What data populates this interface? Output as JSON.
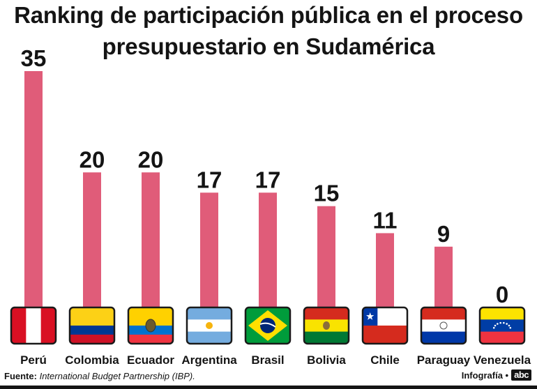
{
  "colors": {
    "bar": "#E05C79",
    "text": "#141414"
  },
  "chart_data": {
    "type": "bar",
    "title_line_1": "Ranking de participación pública en el proceso",
    "title_line_2": "presupuestario en Sudamérica",
    "categories": [
      "Perú",
      "Colombia",
      "Ecuador",
      "Argentina",
      "Brasil",
      "Bolivia",
      "Chile",
      "Paraguay",
      "Venezuela"
    ],
    "values": [
      35,
      20,
      20,
      17,
      17,
      15,
      11,
      9,
      0
    ],
    "flags": [
      "peru-flag-icon",
      "colombia-flag-icon",
      "ecuador-flag-icon",
      "argentina-flag-icon",
      "brazil-flag-icon",
      "bolivia-flag-icon",
      "chile-flag-icon",
      "paraguay-flag-icon",
      "venezuela-flag-icon"
    ],
    "ylim": [
      0,
      35
    ],
    "xlabel": "",
    "ylabel": ""
  },
  "footer": {
    "source_label": "Fuente:",
    "source_text": "International Budget Partnership (IBP).",
    "credit": "Infografía •",
    "logo": "abc"
  }
}
